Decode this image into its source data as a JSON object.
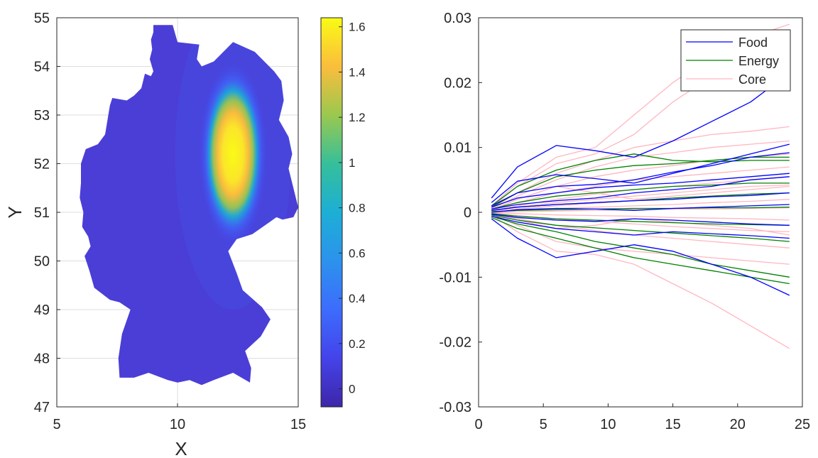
{
  "chart_data": [
    {
      "type": "heatmap",
      "title": "",
      "xlabel": "X",
      "ylabel": "Y",
      "xlim": [
        5,
        15
      ],
      "ylim": [
        47,
        55
      ],
      "xticks": [
        5,
        10,
        15
      ],
      "yticks": [
        47,
        48,
        49,
        50,
        51,
        52,
        53,
        54,
        55
      ],
      "grid": true,
      "region_polygon": [
        [
          9.0,
          54.85
        ],
        [
          9.0,
          54.7
        ],
        [
          8.9,
          54.55
        ],
        [
          8.95,
          54.35
        ],
        [
          8.85,
          54.15
        ],
        [
          9.0,
          53.9
        ],
        [
          8.9,
          53.8
        ],
        [
          8.65,
          53.85
        ],
        [
          8.5,
          53.55
        ],
        [
          8.2,
          53.4
        ],
        [
          7.9,
          53.3
        ],
        [
          7.3,
          53.35
        ],
        [
          7.2,
          53.2
        ],
        [
          7.1,
          52.9
        ],
        [
          7.0,
          52.6
        ],
        [
          6.7,
          52.4
        ],
        [
          6.2,
          52.3
        ],
        [
          6.0,
          52.0
        ],
        [
          6.0,
          51.6
        ],
        [
          5.95,
          51.3
        ],
        [
          6.1,
          51.0
        ],
        [
          6.05,
          50.7
        ],
        [
          6.3,
          50.5
        ],
        [
          6.4,
          50.3
        ],
        [
          6.15,
          50.1
        ],
        [
          6.35,
          49.8
        ],
        [
          6.55,
          49.45
        ],
        [
          7.2,
          49.2
        ],
        [
          7.6,
          49.15
        ],
        [
          8.05,
          49.0
        ],
        [
          7.7,
          48.5
        ],
        [
          7.55,
          48.0
        ],
        [
          7.6,
          47.6
        ],
        [
          8.2,
          47.6
        ],
        [
          8.8,
          47.7
        ],
        [
          9.6,
          47.55
        ],
        [
          10.0,
          47.5
        ],
        [
          10.5,
          47.55
        ],
        [
          11.0,
          47.45
        ],
        [
          11.5,
          47.55
        ],
        [
          12.3,
          47.7
        ],
        [
          13.0,
          47.5
        ],
        [
          13.05,
          47.8
        ],
        [
          12.8,
          48.15
        ],
        [
          13.45,
          48.45
        ],
        [
          13.85,
          48.8
        ],
        [
          13.5,
          49.05
        ],
        [
          12.7,
          49.4
        ],
        [
          12.45,
          49.75
        ],
        [
          12.1,
          50.2
        ],
        [
          12.45,
          50.45
        ],
        [
          13.1,
          50.55
        ],
        [
          14.1,
          50.9
        ],
        [
          14.35,
          50.85
        ],
        [
          14.8,
          50.9
        ],
        [
          15.0,
          51.1
        ],
        [
          14.75,
          51.6
        ],
        [
          14.6,
          51.9
        ],
        [
          14.75,
          52.2
        ],
        [
          14.6,
          52.55
        ],
        [
          14.2,
          52.9
        ],
        [
          14.4,
          53.3
        ],
        [
          14.3,
          53.7
        ],
        [
          14.0,
          53.9
        ],
        [
          13.2,
          54.3
        ],
        [
          12.3,
          54.5
        ],
        [
          11.5,
          54.1
        ],
        [
          11.0,
          54.0
        ],
        [
          10.8,
          54.15
        ],
        [
          10.9,
          54.45
        ],
        [
          10.0,
          54.5
        ],
        [
          9.8,
          54.85
        ]
      ],
      "surface": {
        "peak": 1.62,
        "baseline": -0.05,
        "center_x": 12.3,
        "center_y": 52.2,
        "sigma_x": 0.75,
        "sigma_y": 1.0
      },
      "colorbar": {
        "min": -0.08,
        "max": 1.64,
        "ticks": [
          0,
          0.2,
          0.4,
          0.6,
          0.8,
          1,
          1.2,
          1.4,
          1.6
        ],
        "labels": [
          "0",
          "0.2",
          "0.4",
          "0.6",
          "0.8",
          "1",
          "1.2",
          "1.4",
          "1.6"
        ]
      }
    },
    {
      "type": "line",
      "title": "",
      "xlabel": "",
      "ylabel": "",
      "xlim": [
        0,
        25
      ],
      "ylim": [
        -0.03,
        0.03
      ],
      "xticks": [
        0,
        5,
        10,
        15,
        20,
        25
      ],
      "yticks": [
        -0.03,
        -0.02,
        -0.01,
        0,
        0.01,
        0.02,
        0.03
      ],
      "ytick_labels": [
        "-0.03",
        "-0.02",
        "-0.01",
        "0",
        "0.01",
        "0.02",
        "0.03"
      ],
      "legend": {
        "location": "top-right",
        "entries": [
          "Food",
          "Energy",
          "Core"
        ]
      },
      "x": [
        1,
        3,
        6,
        9,
        12,
        15,
        18,
        21,
        24
      ],
      "series": [
        {
          "name": "Food",
          "color": "#0000ff",
          "lines": [
            [
              0.0022,
              0.007,
              0.0103,
              0.0095,
              0.0085,
              0.011,
              0.014,
              0.017,
              0.0215
            ],
            [
              0.0015,
              0.0048,
              0.0058,
              0.0052,
              0.0045,
              0.006,
              0.0075,
              0.009,
              0.0105
            ],
            [
              0.001,
              0.003,
              0.004,
              0.0043,
              0.005,
              0.0062,
              0.0072,
              0.0085,
              0.0092
            ],
            [
              0.0008,
              0.0022,
              0.003,
              0.0038,
              0.0042,
              0.0045,
              0.005,
              0.0055,
              0.006
            ],
            [
              0.0005,
              0.0012,
              0.0018,
              0.0022,
              0.003,
              0.0035,
              0.004,
              0.005,
              0.0055
            ],
            [
              0.0003,
              0.0008,
              0.0012,
              0.0015,
              0.0018,
              0.002,
              0.0024,
              0.0026,
              0.003
            ],
            [
              0.0,
              0.0004,
              0.0006,
              0.0005,
              0.0003,
              0.0006,
              0.0008,
              0.001,
              0.0012
            ],
            [
              -0.0003,
              -0.0008,
              -0.0012,
              -0.0014,
              -0.001,
              -0.0012,
              -0.0015,
              -0.0018,
              -0.002
            ],
            [
              -0.0006,
              -0.0015,
              -0.0025,
              -0.003,
              -0.0035,
              -0.003,
              -0.0033,
              -0.0036,
              -0.004
            ],
            [
              -0.001,
              -0.004,
              -0.007,
              -0.006,
              -0.005,
              -0.006,
              -0.008,
              -0.01,
              -0.0128
            ]
          ]
        },
        {
          "name": "Energy",
          "color": "#008000",
          "lines": [
            [
              0.001,
              0.004,
              0.0065,
              0.008,
              0.009,
              0.008,
              0.0078,
              0.008,
              0.008
            ],
            [
              0.0008,
              0.003,
              0.0055,
              0.0065,
              0.0072,
              0.0075,
              0.008,
              0.0085,
              0.0085
            ],
            [
              0.0005,
              0.0015,
              0.0025,
              0.003,
              0.0035,
              0.004,
              0.0042,
              0.0045,
              0.0045
            ],
            [
              0.0003,
              0.0008,
              0.0012,
              0.0015,
              0.0018,
              0.0022,
              0.0025,
              0.0028,
              0.003
            ],
            [
              0.0001,
              0.0003,
              0.0004,
              0.0005,
              0.0006,
              0.0006,
              0.0007,
              0.0007,
              0.0008
            ],
            [
              -0.0002,
              -0.0006,
              -0.001,
              -0.0012,
              -0.0014,
              -0.0016,
              -0.0018,
              -0.0019,
              -0.002
            ],
            [
              -0.0004,
              -0.0012,
              -0.002,
              -0.0024,
              -0.0028,
              -0.0032,
              -0.0036,
              -0.004,
              -0.0045
            ],
            [
              -0.0006,
              -0.0018,
              -0.003,
              -0.0045,
              -0.0055,
              -0.0065,
              -0.008,
              -0.009,
              -0.01
            ],
            [
              -0.0008,
              -0.0025,
              -0.004,
              -0.0055,
              -0.007,
              -0.008,
              -0.009,
              -0.01,
              -0.011
            ]
          ]
        },
        {
          "name": "Core",
          "color": "#ffb6c1",
          "lines": [
            [
              0.001,
              0.0045,
              0.0085,
              0.01,
              0.015,
              0.02,
              0.024,
              0.027,
              0.029
            ],
            [
              0.0008,
              0.004,
              0.0075,
              0.009,
              0.012,
              0.017,
              0.021,
              0.024,
              0.027
            ],
            [
              0.0006,
              0.003,
              0.006,
              0.008,
              0.01,
              0.011,
              0.012,
              0.0125,
              0.0132
            ],
            [
              0.0005,
              0.0025,
              0.005,
              0.007,
              0.0085,
              0.0092,
              0.01,
              0.0105,
              0.011
            ],
            [
              0.0004,
              0.002,
              0.004,
              0.0055,
              0.0065,
              0.0072,
              0.008,
              0.0085,
              0.009
            ],
            [
              0.0003,
              0.0015,
              0.003,
              0.004,
              0.005,
              0.0055,
              0.006,
              0.0065,
              0.007
            ],
            [
              0.0002,
              0.001,
              0.002,
              0.0028,
              0.0035,
              0.004,
              0.0045,
              0.005,
              0.0055
            ],
            [
              0.0002,
              0.0008,
              0.0015,
              0.002,
              0.0025,
              0.003,
              0.0035,
              0.004,
              0.0042
            ],
            [
              0.0001,
              0.0005,
              0.001,
              0.0014,
              0.0018,
              0.0022,
              0.0025,
              0.0028,
              0.003
            ],
            [
              0.0001,
              0.0003,
              0.0006,
              0.0008,
              0.001,
              0.0012,
              0.0015,
              0.0017,
              0.002
            ],
            [
              0.0,
              0.0001,
              0.0002,
              0.0003,
              0.0004,
              0.0005,
              0.0005,
              0.0006,
              0.0007
            ],
            [
              0.0,
              -0.0002,
              -0.0004,
              -0.0005,
              -0.0006,
              -0.0008,
              -0.0009,
              -0.001,
              -0.0012
            ],
            [
              -0.0001,
              -0.0005,
              -0.001,
              -0.0014,
              -0.0018,
              -0.0022,
              -0.0025,
              -0.0028,
              -0.003
            ],
            [
              -0.0002,
              -0.001,
              -0.002,
              -0.0028,
              -0.0035,
              -0.004,
              -0.0045,
              -0.005,
              -0.0055
            ],
            [
              -0.0003,
              -0.002,
              -0.0045,
              -0.0055,
              -0.006,
              -0.0065,
              -0.007,
              -0.0075,
              -0.008
            ],
            [
              -0.0004,
              -0.003,
              -0.006,
              -0.0065,
              -0.008,
              -0.011,
              -0.014,
              -0.0175,
              -0.021
            ],
            [
              0.0003,
              0.002,
              0.004,
              0.003,
              0.002,
              0.0025,
              0.003,
              0.0035,
              0.004
            ],
            [
              -0.0002,
              -0.0012,
              -0.0025,
              -0.002,
              -0.001,
              -0.0015,
              -0.002,
              -0.0025,
              -0.0035
            ]
          ]
        }
      ]
    }
  ]
}
